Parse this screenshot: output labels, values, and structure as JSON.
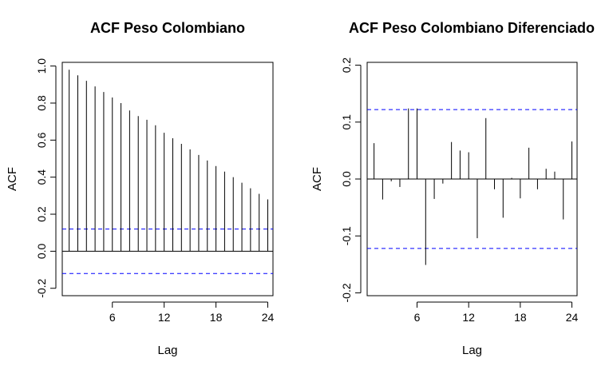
{
  "chart_data": [
    {
      "type": "bar",
      "title": "ACF Peso Colombiano",
      "xlabel": "Lag",
      "ylabel": "ACF",
      "xlim": [
        0.2,
        24.6
      ],
      "ylim": [
        -0.24,
        1.02
      ],
      "x_ticks": [
        6,
        12,
        18,
        24
      ],
      "y_ticks": [
        -0.2,
        0.0,
        0.2,
        0.4,
        0.6,
        0.8,
        1.0
      ],
      "y_tick_labels": [
        "-0.2",
        "0.0",
        "0.2",
        "0.4",
        "0.6",
        "0.8",
        "1.0"
      ],
      "confidence_bound": 0.12,
      "confidence_line_color": "#0000ff",
      "lags": [
        1,
        2,
        3,
        4,
        5,
        6,
        7,
        8,
        9,
        10,
        11,
        12,
        13,
        14,
        15,
        16,
        17,
        18,
        19,
        20,
        21,
        22,
        23,
        24
      ],
      "values": [
        0.98,
        0.95,
        0.92,
        0.89,
        0.86,
        0.83,
        0.8,
        0.76,
        0.73,
        0.71,
        0.68,
        0.64,
        0.61,
        0.58,
        0.55,
        0.52,
        0.49,
        0.46,
        0.43,
        0.4,
        0.37,
        0.34,
        0.31,
        0.28
      ]
    },
    {
      "type": "bar",
      "title": "ACF Peso Colombiano Diferenciado",
      "xlabel": "Lag",
      "ylabel": "ACF",
      "xlim": [
        0.2,
        24.6
      ],
      "ylim": [
        -0.205,
        0.205
      ],
      "x_ticks": [
        6,
        12,
        18,
        24
      ],
      "y_ticks": [
        -0.2,
        -0.1,
        0.0,
        0.1,
        0.2
      ],
      "y_tick_labels": [
        "-0.2",
        "-0.1",
        "0.0",
        "0.1",
        "0.2"
      ],
      "confidence_bound": 0.122,
      "confidence_line_color": "#0000ff",
      "lags": [
        1,
        2,
        3,
        4,
        5,
        6,
        7,
        8,
        9,
        10,
        11,
        12,
        13,
        14,
        15,
        16,
        17,
        18,
        19,
        20,
        21,
        22,
        23,
        24
      ],
      "values": [
        0.063,
        -0.036,
        -0.004,
        -0.014,
        0.124,
        0.124,
        -0.151,
        -0.035,
        -0.008,
        0.065,
        0.05,
        0.047,
        -0.104,
        0.107,
        -0.018,
        -0.068,
        0.002,
        -0.034,
        0.055,
        -0.018,
        0.018,
        0.013,
        -0.071,
        0.066
      ]
    }
  ]
}
